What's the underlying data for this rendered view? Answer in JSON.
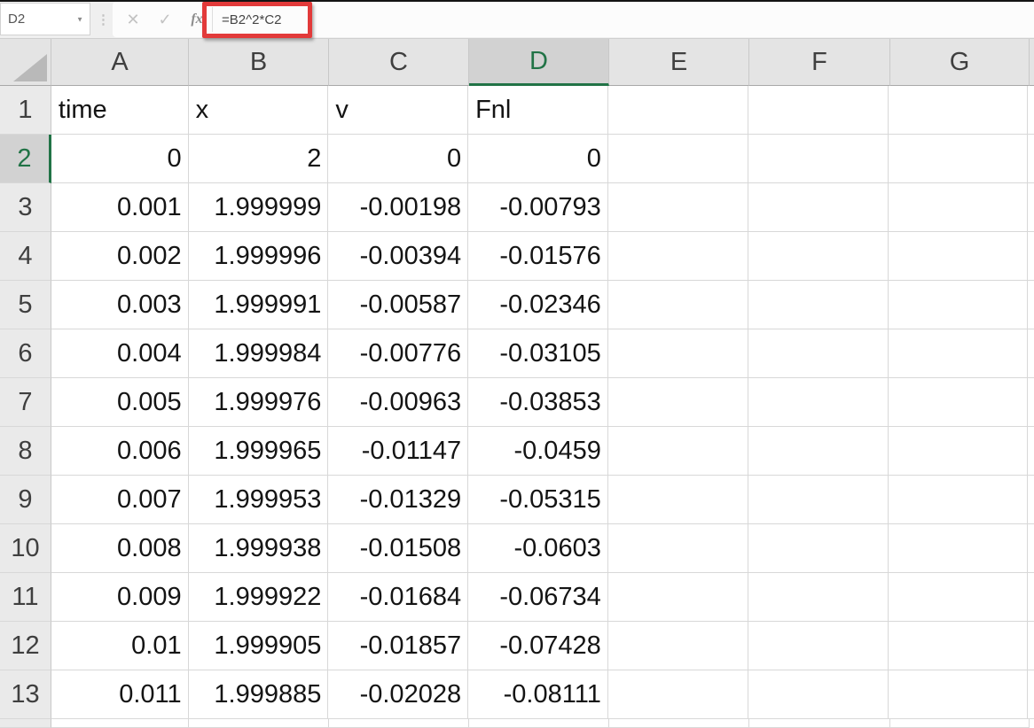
{
  "name_box": {
    "value": "D2",
    "dropdown_icon": "▼"
  },
  "formula_bar": {
    "separator_icon": "⋮",
    "cancel_label": "✕",
    "enter_label": "✓",
    "fx_label": "fx",
    "formula": "=B2^2*C2"
  },
  "annotation": {
    "shape": "red-rectangle",
    "color": "#e23a3a"
  },
  "colors": {
    "accent_green": "#217346",
    "annotation_red": "#e23a3a",
    "header_bg": "#e4e4e4",
    "selected_header_bg": "#d2d2d2",
    "gridline": "#d8d8d8"
  },
  "grid": {
    "column_headers": [
      "A",
      "B",
      "C",
      "D",
      "E",
      "F",
      "G"
    ],
    "selected": {
      "column": "D",
      "row": 2,
      "cell": "D2"
    },
    "rows": [
      {
        "n": "1",
        "align": "left",
        "cells": [
          "time",
          "x",
          "v",
          "Fnl",
          "",
          "",
          ""
        ]
      },
      {
        "n": "2",
        "align": "right",
        "cells": [
          "0",
          "2",
          "0",
          "0",
          "",
          "",
          ""
        ]
      },
      {
        "n": "3",
        "align": "right",
        "cells": [
          "0.001",
          "1.999999",
          "-0.00198",
          "-0.00793",
          "",
          "",
          ""
        ]
      },
      {
        "n": "4",
        "align": "right",
        "cells": [
          "0.002",
          "1.999996",
          "-0.00394",
          "-0.01576",
          "",
          "",
          ""
        ]
      },
      {
        "n": "5",
        "align": "right",
        "cells": [
          "0.003",
          "1.999991",
          "-0.00587",
          "-0.02346",
          "",
          "",
          ""
        ]
      },
      {
        "n": "6",
        "align": "right",
        "cells": [
          "0.004",
          "1.999984",
          "-0.00776",
          "-0.03105",
          "",
          "",
          ""
        ]
      },
      {
        "n": "7",
        "align": "right",
        "cells": [
          "0.005",
          "1.999976",
          "-0.00963",
          "-0.03853",
          "",
          "",
          ""
        ]
      },
      {
        "n": "8",
        "align": "right",
        "cells": [
          "0.006",
          "1.999965",
          "-0.01147",
          "-0.0459",
          "",
          "",
          ""
        ]
      },
      {
        "n": "9",
        "align": "right",
        "cells": [
          "0.007",
          "1.999953",
          "-0.01329",
          "-0.05315",
          "",
          "",
          ""
        ]
      },
      {
        "n": "10",
        "align": "right",
        "cells": [
          "0.008",
          "1.999938",
          "-0.01508",
          "-0.0603",
          "",
          "",
          ""
        ]
      },
      {
        "n": "11",
        "align": "right",
        "cells": [
          "0.009",
          "1.999922",
          "-0.01684",
          "-0.06734",
          "",
          "",
          ""
        ]
      },
      {
        "n": "12",
        "align": "right",
        "cells": [
          "0.01",
          "1.999905",
          "-0.01857",
          "-0.07428",
          "",
          "",
          ""
        ]
      },
      {
        "n": "13",
        "align": "right",
        "cells": [
          "0.011",
          "1.999885",
          "-0.02028",
          "-0.08111",
          "",
          "",
          ""
        ]
      }
    ]
  }
}
